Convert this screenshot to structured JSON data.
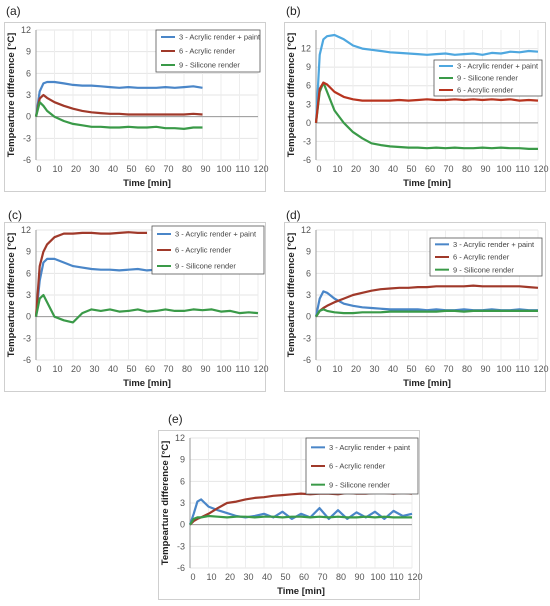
{
  "figure": {
    "panel_labels": [
      "(a)",
      "(b)",
      "(c)",
      "(d)",
      "(e)"
    ]
  },
  "chart_data": [
    {
      "panel": "(a)",
      "type": "line",
      "xlabel": "Time [min]",
      "ylabel": "Tempearture difference [°C]",
      "xlim": [
        0,
        120
      ],
      "ylim": [
        -6,
        12
      ],
      "xticks": [
        0,
        10,
        20,
        30,
        40,
        50,
        60,
        70,
        80,
        90,
        100,
        110,
        120
      ],
      "yticks": [
        -6,
        -3,
        0,
        3,
        6,
        9,
        12
      ],
      "grid": true,
      "legend": "top-right",
      "series": [
        {
          "name": "3 - Acrylic render + paint",
          "color": "#4a86c8",
          "x": [
            0,
            2,
            4,
            6,
            10,
            15,
            20,
            25,
            30,
            35,
            40,
            45,
            50,
            55,
            60,
            65,
            70,
            75,
            80,
            85,
            90
          ],
          "y": [
            0,
            3.5,
            4.6,
            4.8,
            4.8,
            4.6,
            4.4,
            4.3,
            4.3,
            4.2,
            4.1,
            4.0,
            4.1,
            4.0,
            4.0,
            4.0,
            4.1,
            4.0,
            4.1,
            4.2,
            4.0
          ]
        },
        {
          "name": "6 - Acrylic render",
          "color": "#a0392a",
          "x": [
            0,
            2,
            4,
            6,
            10,
            15,
            20,
            25,
            30,
            35,
            40,
            45,
            50,
            55,
            60,
            65,
            70,
            75,
            80,
            85,
            90
          ],
          "y": [
            0,
            2.5,
            3.0,
            2.6,
            2.0,
            1.5,
            1.1,
            0.8,
            0.6,
            0.5,
            0.4,
            0.4,
            0.3,
            0.3,
            0.3,
            0.3,
            0.3,
            0.3,
            0.3,
            0.4,
            0.3
          ]
        },
        {
          "name": "9 - Silicone render",
          "color": "#3a9a48",
          "x": [
            0,
            2,
            4,
            6,
            10,
            15,
            20,
            25,
            30,
            35,
            40,
            45,
            50,
            55,
            60,
            65,
            70,
            75,
            80,
            85,
            90
          ],
          "y": [
            0,
            2.0,
            1.5,
            0.8,
            0,
            -0.6,
            -1.0,
            -1.2,
            -1.4,
            -1.4,
            -1.5,
            -1.5,
            -1.4,
            -1.5,
            -1.5,
            -1.4,
            -1.6,
            -1.6,
            -1.7,
            -1.5,
            -1.5
          ]
        }
      ]
    },
    {
      "panel": "(b)",
      "type": "line",
      "xlabel": "Time [min]",
      "ylabel": "Tempearture difference [°C]",
      "xlim": [
        0,
        120
      ],
      "ylim": [
        -6,
        15
      ],
      "xticks": [
        0,
        10,
        20,
        30,
        40,
        50,
        60,
        70,
        80,
        90,
        100,
        110,
        120
      ],
      "yticks": [
        -6,
        -3,
        0,
        3,
        6,
        9,
        12
      ],
      "grid": true,
      "legend": "top-right",
      "series": [
        {
          "name": "3 - Acrylic render + paint",
          "color": "#4ea7df",
          "x": [
            0,
            2,
            4,
            6,
            10,
            15,
            20,
            25,
            30,
            35,
            40,
            45,
            50,
            55,
            60,
            65,
            70,
            75,
            80,
            85,
            90,
            95,
            100,
            105,
            110,
            115,
            120
          ],
          "y": [
            0,
            11,
            13.5,
            14,
            14.2,
            13.5,
            12.5,
            12,
            11.8,
            11.6,
            11.4,
            11.3,
            11.2,
            11.1,
            11.0,
            11.1,
            11.2,
            11.0,
            11.1,
            11.2,
            11.0,
            11.3,
            11.2,
            11.5,
            11.4,
            11.6,
            11.5
          ]
        },
        {
          "name": "9 - Silicone render",
          "color": "#3a9a48",
          "x": [
            0,
            2,
            4,
            6,
            10,
            15,
            20,
            25,
            30,
            35,
            40,
            45,
            50,
            55,
            60,
            65,
            70,
            75,
            80,
            85,
            90,
            95,
            100,
            105,
            110,
            115,
            120
          ],
          "y": [
            0,
            5,
            6.5,
            5,
            2,
            0,
            -1.5,
            -2.5,
            -3.3,
            -3.6,
            -3.8,
            -3.9,
            -4.0,
            -4.0,
            -4.1,
            -4.0,
            -4.1,
            -4.0,
            -4.1,
            -4.1,
            -4.0,
            -4.1,
            -4.0,
            -4.1,
            -4.1,
            -4.2,
            -4.2
          ]
        },
        {
          "name": "6 - Acrylic render",
          "color": "#b8341f",
          "x": [
            0,
            2,
            4,
            6,
            10,
            15,
            20,
            25,
            30,
            35,
            40,
            45,
            50,
            55,
            60,
            65,
            70,
            75,
            80,
            85,
            90,
            95,
            100,
            105,
            110,
            115,
            120
          ],
          "y": [
            0,
            5.5,
            6.5,
            6.2,
            5,
            4.2,
            3.8,
            3.6,
            3.6,
            3.6,
            3.6,
            3.7,
            3.6,
            3.7,
            3.8,
            3.7,
            3.7,
            3.8,
            3.7,
            3.8,
            3.7,
            3.8,
            3.7,
            3.8,
            3.6,
            3.7,
            3.6
          ]
        }
      ]
    },
    {
      "panel": "(c)",
      "type": "line",
      "xlabel": "Time [min]",
      "ylabel": "Tempearture difference [°C]",
      "xlim": [
        0,
        120
      ],
      "ylim": [
        -6,
        12
      ],
      "xticks": [
        0,
        10,
        20,
        30,
        40,
        50,
        60,
        70,
        80,
        90,
        100,
        110,
        120
      ],
      "yticks": [
        -6,
        -3,
        0,
        3,
        6,
        9,
        12
      ],
      "grid": true,
      "legend": "top-right",
      "series": [
        {
          "name": "3 - Acrylic render + paint",
          "color": "#4a86c8",
          "x": [
            0,
            2,
            4,
            6,
            10,
            15,
            20,
            25,
            30,
            35,
            40,
            45,
            50,
            55,
            60,
            65,
            70,
            75,
            80,
            85,
            90,
            95,
            100,
            105,
            110,
            115,
            120
          ],
          "y": [
            0,
            5,
            7.5,
            8.0,
            8.0,
            7.5,
            7.0,
            6.8,
            6.6,
            6.5,
            6.5,
            6.4,
            6.5,
            6.6,
            6.4,
            6.5,
            6.6,
            6.5,
            6.5,
            6.6,
            6.5,
            6.5,
            6.6,
            6.5,
            6.5,
            6.4,
            6.4
          ]
        },
        {
          "name": "6 - Acrylic render",
          "color": "#a0392a",
          "x": [
            0,
            2,
            4,
            6,
            10,
            15,
            20,
            25,
            30,
            35,
            40,
            45,
            50,
            55,
            60
          ],
          "y": [
            0,
            7,
            9,
            10,
            11,
            11.5,
            11.5,
            11.6,
            11.6,
            11.5,
            11.5,
            11.6,
            11.7,
            11.6,
            11.6
          ]
        },
        {
          "name": "9 - Silicone render",
          "color": "#3a9a48",
          "x": [
            0,
            2,
            4,
            6,
            10,
            15,
            20,
            25,
            30,
            35,
            40,
            45,
            50,
            55,
            60,
            65,
            70,
            75,
            80,
            85,
            90,
            95,
            100,
            105,
            110,
            115,
            120
          ],
          "y": [
            0,
            2.5,
            3.0,
            2.0,
            0,
            -0.5,
            -0.8,
            0.5,
            1.0,
            0.8,
            1.0,
            0.7,
            0.8,
            1.0,
            0.7,
            0.8,
            1.0,
            0.8,
            0.8,
            1.0,
            0.9,
            1.0,
            0.7,
            0.8,
            0.5,
            0.6,
            0.5
          ]
        }
      ]
    },
    {
      "panel": "(d)",
      "type": "line",
      "xlabel": "Time [min]",
      "ylabel": "Tempearture difference [°C]",
      "xlim": [
        0,
        120
      ],
      "ylim": [
        -6,
        12
      ],
      "xticks": [
        0,
        10,
        20,
        30,
        40,
        50,
        60,
        70,
        80,
        90,
        100,
        110,
        120
      ],
      "yticks": [
        -6,
        -3,
        0,
        3,
        6,
        9,
        12
      ],
      "grid": true,
      "legend": "top-right",
      "series": [
        {
          "name": "3 - Acrylic render + paint",
          "color": "#4a86c8",
          "x": [
            0,
            2,
            4,
            6,
            10,
            15,
            20,
            25,
            30,
            35,
            40,
            45,
            50,
            55,
            60,
            65,
            70,
            75,
            80,
            85,
            90,
            95,
            100,
            105,
            110,
            115,
            120
          ],
          "y": [
            0,
            2.5,
            3.5,
            3.3,
            2.5,
            1.8,
            1.5,
            1.3,
            1.2,
            1.1,
            1.0,
            1.0,
            1.0,
            1.0,
            0.9,
            1.0,
            0.9,
            0.9,
            1.0,
            0.9,
            0.9,
            1.0,
            0.9,
            0.9,
            1.0,
            0.9,
            0.9
          ]
        },
        {
          "name": "6 - Acrylic render",
          "color": "#a0392a",
          "x": [
            0,
            2,
            4,
            6,
            10,
            15,
            20,
            25,
            30,
            35,
            40,
            45,
            50,
            55,
            60,
            65,
            70,
            75,
            80,
            85,
            90,
            95,
            100,
            105,
            110,
            115,
            120
          ],
          "y": [
            0,
            0.8,
            1.2,
            1.5,
            2.0,
            2.5,
            3.0,
            3.3,
            3.6,
            3.8,
            3.9,
            4.0,
            4.0,
            4.1,
            4.1,
            4.2,
            4.2,
            4.2,
            4.2,
            4.3,
            4.2,
            4.2,
            4.2,
            4.2,
            4.2,
            4.1,
            4.0
          ]
        },
        {
          "name": "9 - Silicone render",
          "color": "#3a9a48",
          "x": [
            0,
            2,
            4,
            6,
            10,
            15,
            20,
            25,
            30,
            35,
            40,
            45,
            50,
            55,
            60,
            65,
            70,
            75,
            80,
            85,
            90,
            95,
            100,
            105,
            110,
            115,
            120
          ],
          "y": [
            0,
            0.8,
            1.0,
            0.8,
            0.6,
            0.5,
            0.5,
            0.6,
            0.6,
            0.6,
            0.7,
            0.7,
            0.7,
            0.7,
            0.7,
            0.7,
            0.8,
            0.8,
            0.7,
            0.8,
            0.8,
            0.8,
            0.8,
            0.8,
            0.8,
            0.8,
            0.8
          ]
        }
      ]
    },
    {
      "panel": "(e)",
      "type": "line",
      "xlabel": "Time [min]",
      "ylabel": "Tempearture difference [°C]",
      "xlim": [
        0,
        120
      ],
      "ylim": [
        -6,
        12
      ],
      "xticks": [
        0,
        10,
        20,
        30,
        40,
        50,
        60,
        70,
        80,
        90,
        100,
        110,
        120
      ],
      "yticks": [
        -6,
        -3,
        0,
        3,
        6,
        9,
        12
      ],
      "grid": true,
      "legend": "top-right",
      "series": [
        {
          "name": "3 - Acrylic render + paint",
          "color": "#4a86c8",
          "x": [
            0,
            2,
            4,
            6,
            8,
            10,
            15,
            20,
            25,
            30,
            35,
            40,
            45,
            50,
            55,
            60,
            65,
            70,
            75,
            80,
            85,
            90,
            95,
            100,
            105,
            110,
            115,
            120
          ],
          "y": [
            0,
            1.5,
            3.2,
            3.5,
            3.0,
            2.5,
            2.0,
            1.6,
            1.2,
            1.0,
            1.2,
            1.5,
            1.0,
            1.8,
            0.8,
            1.5,
            1.0,
            2.3,
            0.8,
            2.0,
            0.8,
            1.7,
            1.0,
            1.8,
            0.8,
            1.9,
            1.2,
            1.5
          ]
        },
        {
          "name": "6 - Acrylic render",
          "color": "#a0392a",
          "x": [
            0,
            2,
            4,
            6,
            10,
            15,
            20,
            25,
            30,
            35,
            40,
            45,
            50,
            55,
            60,
            65,
            70,
            75,
            80,
            85,
            90,
            95,
            100,
            105,
            110,
            115,
            120
          ],
          "y": [
            0,
            0.5,
            0.8,
            1.0,
            1.5,
            2.3,
            3.0,
            3.2,
            3.5,
            3.7,
            3.8,
            4.0,
            4.1,
            4.2,
            4.3,
            4.2,
            4.3,
            4.3,
            4.2,
            4.4,
            4.3,
            4.3,
            4.4,
            4.4,
            4.3,
            4.4,
            4.3
          ]
        },
        {
          "name": "9 - Silicone render",
          "color": "#3a9a48",
          "x": [
            0,
            2,
            4,
            6,
            10,
            15,
            20,
            25,
            30,
            35,
            40,
            45,
            50,
            55,
            60,
            65,
            70,
            75,
            80,
            85,
            90,
            95,
            100,
            105,
            110,
            115,
            120
          ],
          "y": [
            0,
            0.8,
            1.0,
            1.0,
            1.2,
            1.1,
            1.0,
            1.1,
            1.1,
            1.0,
            1.1,
            1.1,
            1.0,
            1.1,
            1.1,
            1.0,
            1.1,
            1.0,
            1.1,
            1.0,
            1.0,
            1.1,
            1.0,
            1.1,
            1.0,
            1.0,
            1.0
          ]
        }
      ]
    }
  ]
}
